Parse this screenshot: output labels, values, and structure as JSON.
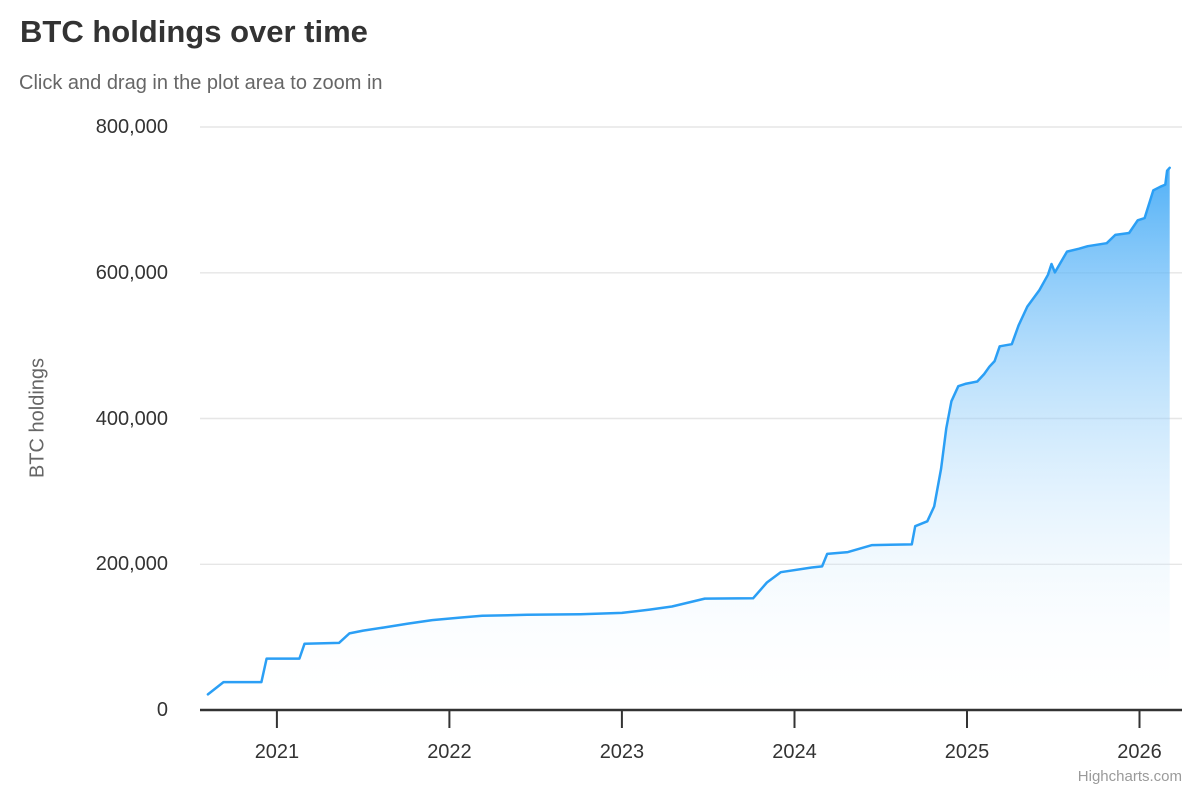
{
  "chart_data": {
    "type": "area",
    "title": "BTC holdings over time",
    "subtitle": "Click and drag in the plot area to zoom in",
    "xlabel": "",
    "ylabel": "BTC holdings",
    "credits": "Highcharts.com",
    "legend": "none",
    "grid": "horizontal-only",
    "xlim": [
      2020.554,
      2026.177
    ],
    "ylim": [
      0,
      800000
    ],
    "x_ticks": [
      2021,
      2022,
      2023,
      2024,
      2025,
      2026
    ],
    "x_tick_labels": [
      "2021",
      "2022",
      "2023",
      "2024",
      "2025",
      "2026"
    ],
    "y_ticks": [
      0,
      200000,
      400000,
      600000,
      800000
    ],
    "y_tick_labels": [
      "0",
      "200,000",
      "400,000",
      "600,000",
      "800,000"
    ],
    "colors": {
      "series_line": "#2b9ff5",
      "area_gradient_top": "#2b9ff5",
      "area_gradient_bottom": "#ffffff",
      "grid_line": "#e6e6e6",
      "axis_line": "#333333",
      "title_text": "#333333",
      "subtitle_text": "#666666",
      "tick_label_text": "#333333",
      "axis_title_text": "#666666",
      "credits_text": "#9a9a9a"
    },
    "series": [
      {
        "name": "BTC holdings",
        "points": [
          [
            2020.6,
            21454
          ],
          [
            2020.69,
            38250
          ],
          [
            2020.91,
            38250
          ],
          [
            2020.94,
            70470
          ],
          [
            2021.13,
            70470
          ],
          [
            2021.16,
            90859
          ],
          [
            2021.36,
            92079
          ],
          [
            2021.42,
            105085
          ],
          [
            2021.5,
            108992
          ],
          [
            2021.62,
            113200
          ],
          [
            2021.76,
            118500
          ],
          [
            2021.9,
            123400
          ],
          [
            2022.06,
            126800
          ],
          [
            2022.19,
            129218
          ],
          [
            2022.45,
            130600
          ],
          [
            2022.76,
            131400
          ],
          [
            2023.0,
            133300
          ],
          [
            2023.16,
            137800
          ],
          [
            2023.29,
            142000
          ],
          [
            2023.48,
            152800
          ],
          [
            2023.76,
            153300
          ],
          [
            2023.84,
            175000
          ],
          [
            2023.92,
            189150
          ],
          [
            2024.1,
            195500
          ],
          [
            2024.16,
            197000
          ],
          [
            2024.19,
            214246
          ],
          [
            2024.31,
            216700
          ],
          [
            2024.45,
            226331
          ],
          [
            2024.68,
            227200
          ],
          [
            2024.7,
            252220
          ],
          [
            2024.77,
            259000
          ],
          [
            2024.81,
            279420
          ],
          [
            2024.85,
            331200
          ],
          [
            2024.88,
            386700
          ],
          [
            2024.91,
            423650
          ],
          [
            2024.95,
            444262
          ],
          [
            2024.99,
            447470
          ],
          [
            2025.06,
            450800
          ],
          [
            2025.1,
            461000
          ],
          [
            2025.13,
            471107
          ],
          [
            2025.16,
            478740
          ],
          [
            2025.19,
            499096
          ],
          [
            2025.26,
            502000
          ],
          [
            2025.3,
            528185
          ],
          [
            2025.35,
            553555
          ],
          [
            2025.42,
            576230
          ],
          [
            2025.47,
            597325
          ],
          [
            2025.49,
            612000
          ],
          [
            2025.51,
            600500
          ],
          [
            2025.58,
            629000
          ],
          [
            2025.65,
            633000
          ],
          [
            2025.7,
            636500
          ],
          [
            2025.81,
            640500
          ],
          [
            2025.86,
            652000
          ],
          [
            2025.94,
            654500
          ],
          [
            2025.99,
            672000
          ],
          [
            2026.03,
            675000
          ],
          [
            2026.08,
            713000
          ],
          [
            2026.12,
            718000
          ],
          [
            2026.15,
            721000
          ],
          [
            2026.16,
            740000
          ],
          [
            2026.175,
            744000
          ]
        ]
      }
    ]
  }
}
